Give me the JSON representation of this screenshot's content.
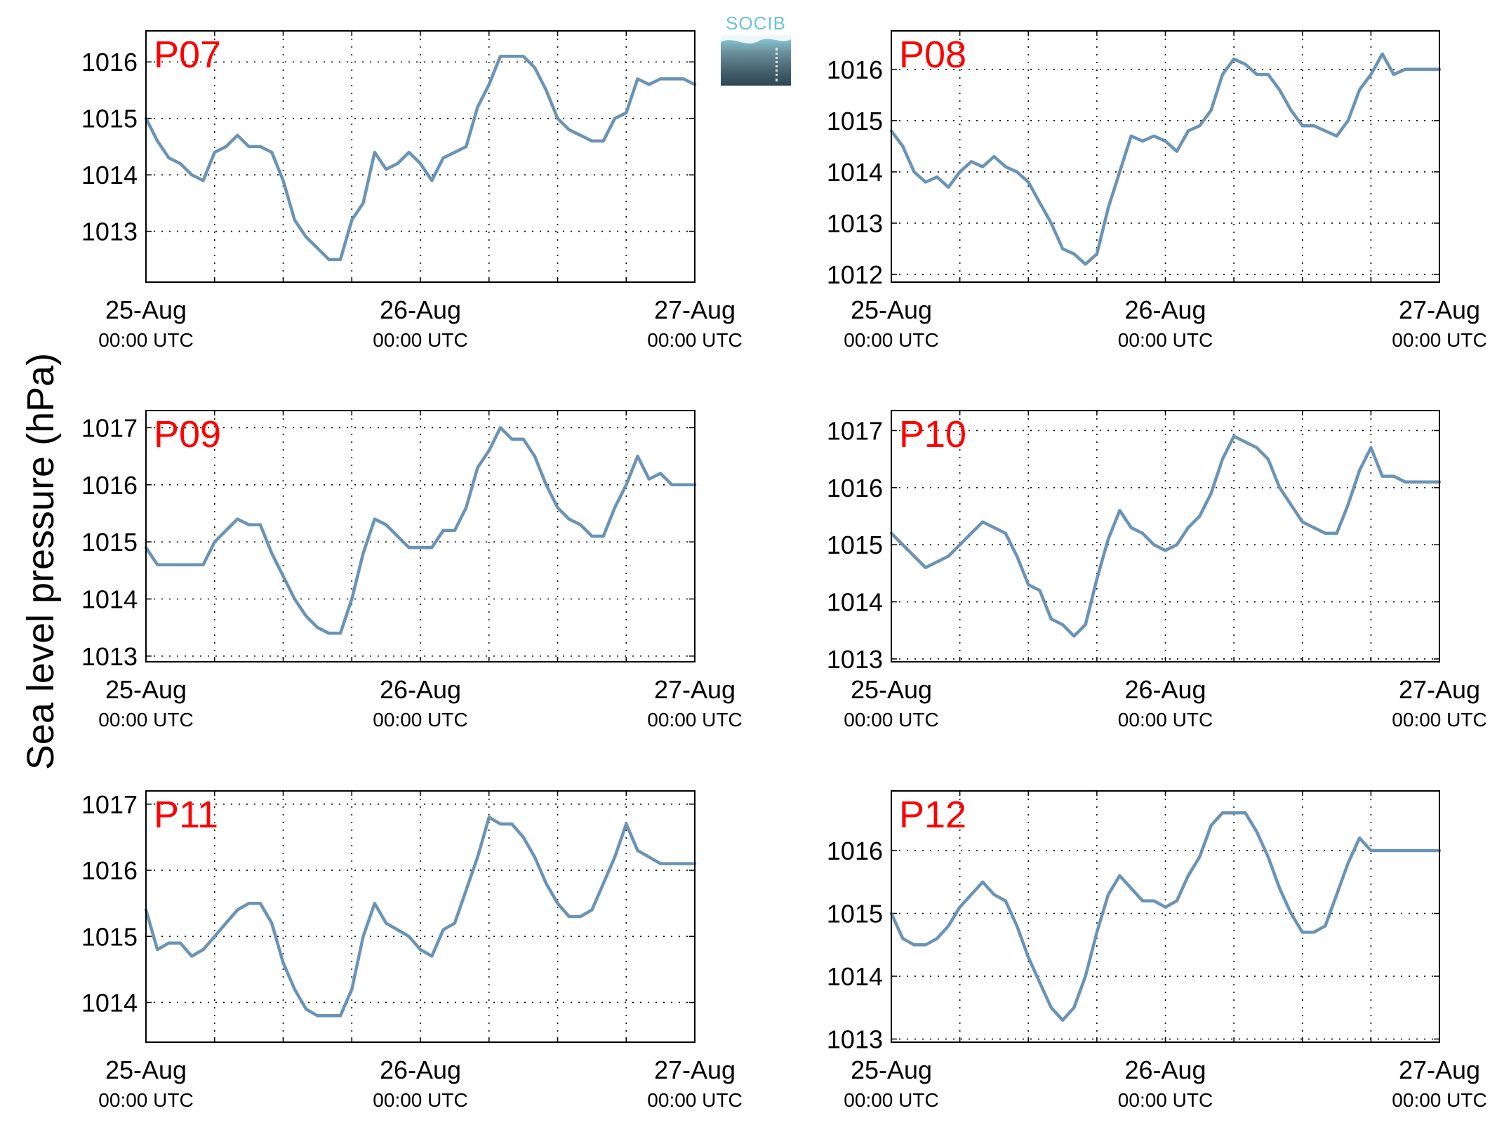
{
  "figure": {
    "ylabel": "Sea level pressure (hPa)",
    "logo_text": "SOCIB"
  },
  "colors": {
    "line": "#6a93b6",
    "panel_label": "#ff0000",
    "grid": "#000000"
  },
  "chart_data": [
    {
      "type": "line",
      "title": "P07",
      "x_ticks": [
        {
          "main": "25-Aug",
          "sub": "00:00 UTC"
        },
        {
          "main": "26-Aug",
          "sub": "00:00 UTC"
        },
        {
          "main": "27-Aug",
          "sub": "00:00 UTC"
        }
      ],
      "xlim": [
        0,
        48
      ],
      "ylim": [
        1012.1,
        1016.55
      ],
      "yticks": [
        1013,
        1014,
        1015,
        1016
      ],
      "grid": true,
      "series": [
        {
          "x": [
            0,
            1,
            2,
            3,
            4,
            5,
            6,
            7,
            8,
            9,
            10,
            11,
            12,
            13,
            14,
            15,
            16,
            17,
            18,
            19,
            20,
            21,
            22,
            23,
            24,
            25,
            26,
            27,
            28,
            29,
            30,
            31,
            32,
            33,
            34,
            35,
            36,
            37,
            38,
            39,
            40,
            41,
            42,
            43,
            44,
            45,
            46,
            47,
            48
          ],
          "y": [
            1015.0,
            1014.6,
            1014.3,
            1014.2,
            1014.0,
            1013.9,
            1014.4,
            1014.5,
            1014.7,
            1014.5,
            1014.5,
            1014.4,
            1013.9,
            1013.2,
            1012.9,
            1012.7,
            1012.5,
            1012.5,
            1013.2,
            1013.5,
            1014.4,
            1014.1,
            1014.2,
            1014.4,
            1014.2,
            1013.9,
            1014.3,
            1014.4,
            1014.5,
            1015.2,
            1015.6,
            1016.1,
            1016.1,
            1016.1,
            1015.9,
            1015.5,
            1015.0,
            1014.8,
            1014.7,
            1014.6,
            1014.6,
            1015.0,
            1015.1,
            1015.7,
            1015.6,
            1015.7,
            1015.7,
            1015.7,
            1015.6
          ]
        }
      ]
    },
    {
      "type": "line",
      "title": "P08",
      "x_ticks": [
        {
          "main": "25-Aug",
          "sub": "00:00 UTC"
        },
        {
          "main": "26-Aug",
          "sub": "00:00 UTC"
        },
        {
          "main": "27-Aug",
          "sub": "00:00 UTC"
        }
      ],
      "xlim": [
        0,
        48
      ],
      "ylim": [
        1011.85,
        1016.75
      ],
      "yticks": [
        1012,
        1013,
        1014,
        1015,
        1016
      ],
      "grid": true,
      "series": [
        {
          "x": [
            0,
            1,
            2,
            3,
            4,
            5,
            6,
            7,
            8,
            9,
            10,
            11,
            12,
            13,
            14,
            15,
            16,
            17,
            18,
            19,
            20,
            21,
            22,
            23,
            24,
            25,
            26,
            27,
            28,
            29,
            30,
            31,
            32,
            33,
            34,
            35,
            36,
            37,
            38,
            39,
            40,
            41,
            42,
            43,
            44,
            45,
            46,
            47,
            48
          ],
          "y": [
            1014.8,
            1014.5,
            1014.0,
            1013.8,
            1013.9,
            1013.7,
            1014.0,
            1014.2,
            1014.1,
            1014.3,
            1014.1,
            1014.0,
            1013.8,
            1013.4,
            1013.0,
            1012.5,
            1012.4,
            1012.2,
            1012.4,
            1013.3,
            1014.0,
            1014.7,
            1014.6,
            1014.7,
            1014.6,
            1014.4,
            1014.8,
            1014.9,
            1015.2,
            1015.9,
            1016.2,
            1016.1,
            1015.9,
            1015.9,
            1015.6,
            1015.2,
            1014.9,
            1014.9,
            1014.8,
            1014.7,
            1015.0,
            1015.6,
            1015.9,
            1016.3,
            1015.9,
            1016.0,
            1016.0,
            1016.0,
            1016.0
          ]
        }
      ]
    },
    {
      "type": "line",
      "title": "P09",
      "x_ticks": [
        {
          "main": "25-Aug",
          "sub": "00:00 UTC"
        },
        {
          "main": "26-Aug",
          "sub": "00:00 UTC"
        },
        {
          "main": "27-Aug",
          "sub": "00:00 UTC"
        }
      ],
      "xlim": [
        0,
        48
      ],
      "ylim": [
        1012.9,
        1017.3
      ],
      "yticks": [
        1013,
        1014,
        1015,
        1016,
        1017
      ],
      "grid": true,
      "series": [
        {
          "x": [
            0,
            1,
            2,
            3,
            4,
            5,
            6,
            7,
            8,
            9,
            10,
            11,
            12,
            13,
            14,
            15,
            16,
            17,
            18,
            19,
            20,
            21,
            22,
            23,
            24,
            25,
            26,
            27,
            28,
            29,
            30,
            31,
            32,
            33,
            34,
            35,
            36,
            37,
            38,
            39,
            40,
            41,
            42,
            43,
            44,
            45,
            46,
            47,
            48
          ],
          "y": [
            1014.9,
            1014.6,
            1014.6,
            1014.6,
            1014.6,
            1014.6,
            1015.0,
            1015.2,
            1015.4,
            1015.3,
            1015.3,
            1014.8,
            1014.4,
            1014.0,
            1013.7,
            1013.5,
            1013.4,
            1013.4,
            1014.0,
            1014.8,
            1015.4,
            1015.3,
            1015.1,
            1014.9,
            1014.9,
            1014.9,
            1015.2,
            1015.2,
            1015.6,
            1016.3,
            1016.6,
            1017.0,
            1016.8,
            1016.8,
            1016.5,
            1016.0,
            1015.6,
            1015.4,
            1015.3,
            1015.1,
            1015.1,
            1015.6,
            1016.0,
            1016.5,
            1016.1,
            1016.2,
            1016.0,
            1016.0,
            1016.0
          ]
        }
      ]
    },
    {
      "type": "line",
      "title": "P10",
      "x_ticks": [
        {
          "main": "25-Aug",
          "sub": "00:00 UTC"
        },
        {
          "main": "26-Aug",
          "sub": "00:00 UTC"
        },
        {
          "main": "27-Aug",
          "sub": "00:00 UTC"
        }
      ],
      "xlim": [
        0,
        48
      ],
      "ylim": [
        1012.95,
        1017.35
      ],
      "yticks": [
        1013,
        1014,
        1015,
        1016,
        1017
      ],
      "grid": true,
      "series": [
        {
          "x": [
            0,
            1,
            2,
            3,
            4,
            5,
            6,
            7,
            8,
            9,
            10,
            11,
            12,
            13,
            14,
            15,
            16,
            17,
            18,
            19,
            20,
            21,
            22,
            23,
            24,
            25,
            26,
            27,
            28,
            29,
            30,
            31,
            32,
            33,
            34,
            35,
            36,
            37,
            38,
            39,
            40,
            41,
            42,
            43,
            44,
            45,
            46,
            47,
            48
          ],
          "y": [
            1015.2,
            1015.0,
            1014.8,
            1014.6,
            1014.7,
            1014.8,
            1015.0,
            1015.2,
            1015.4,
            1015.3,
            1015.2,
            1014.8,
            1014.3,
            1014.2,
            1013.7,
            1013.6,
            1013.4,
            1013.6,
            1014.4,
            1015.1,
            1015.6,
            1015.3,
            1015.2,
            1015.0,
            1014.9,
            1015.0,
            1015.3,
            1015.5,
            1015.9,
            1016.5,
            1016.9,
            1016.8,
            1016.7,
            1016.5,
            1016.0,
            1015.7,
            1015.4,
            1015.3,
            1015.2,
            1015.2,
            1015.7,
            1016.3,
            1016.7,
            1016.2,
            1016.2,
            1016.1,
            1016.1,
            1016.1,
            1016.1
          ]
        }
      ]
    },
    {
      "type": "line",
      "title": "P11",
      "x_ticks": [
        {
          "main": "25-Aug",
          "sub": "00:00 UTC"
        },
        {
          "main": "26-Aug",
          "sub": "00:00 UTC"
        },
        {
          "main": "27-Aug",
          "sub": "00:00 UTC"
        }
      ],
      "xlim": [
        0,
        48
      ],
      "ylim": [
        1013.4,
        1017.2
      ],
      "yticks": [
        1014,
        1015,
        1016,
        1017
      ],
      "grid": true,
      "series": [
        {
          "x": [
            0,
            1,
            2,
            3,
            4,
            5,
            6,
            7,
            8,
            9,
            10,
            11,
            12,
            13,
            14,
            15,
            16,
            17,
            18,
            19,
            20,
            21,
            22,
            23,
            24,
            25,
            26,
            27,
            28,
            29,
            30,
            31,
            32,
            33,
            34,
            35,
            36,
            37,
            38,
            39,
            40,
            41,
            42,
            43,
            44,
            45,
            46,
            47,
            48
          ],
          "y": [
            1015.4,
            1014.8,
            1014.9,
            1014.9,
            1014.7,
            1014.8,
            1015.0,
            1015.2,
            1015.4,
            1015.5,
            1015.5,
            1015.2,
            1014.6,
            1014.2,
            1013.9,
            1013.8,
            1013.8,
            1013.8,
            1014.2,
            1015.0,
            1015.5,
            1015.2,
            1015.1,
            1015.0,
            1014.8,
            1014.7,
            1015.1,
            1015.2,
            1015.7,
            1016.2,
            1016.8,
            1016.7,
            1016.7,
            1016.5,
            1016.2,
            1015.8,
            1015.5,
            1015.3,
            1015.3,
            1015.4,
            1015.8,
            1016.2,
            1016.7,
            1016.3,
            1016.2,
            1016.1,
            1016.1,
            1016.1,
            1016.1
          ]
        }
      ]
    },
    {
      "type": "line",
      "title": "P12",
      "x_ticks": [
        {
          "main": "25-Aug",
          "sub": "00:00 UTC"
        },
        {
          "main": "26-Aug",
          "sub": "00:00 UTC"
        },
        {
          "main": "27-Aug",
          "sub": "00:00 UTC"
        }
      ],
      "xlim": [
        0,
        48
      ],
      "ylim": [
        1012.95,
        1016.95
      ],
      "yticks": [
        1013,
        1014,
        1015,
        1016
      ],
      "grid": true,
      "series": [
        {
          "x": [
            0,
            1,
            2,
            3,
            4,
            5,
            6,
            7,
            8,
            9,
            10,
            11,
            12,
            13,
            14,
            15,
            16,
            17,
            18,
            19,
            20,
            21,
            22,
            23,
            24,
            25,
            26,
            27,
            28,
            29,
            30,
            31,
            32,
            33,
            34,
            35,
            36,
            37,
            38,
            39,
            40,
            41,
            42,
            43,
            44,
            45,
            46,
            47,
            48
          ],
          "y": [
            1015.0,
            1014.6,
            1014.5,
            1014.5,
            1014.6,
            1014.8,
            1015.1,
            1015.3,
            1015.5,
            1015.3,
            1015.2,
            1014.8,
            1014.3,
            1013.9,
            1013.5,
            1013.3,
            1013.5,
            1014.0,
            1014.7,
            1015.3,
            1015.6,
            1015.4,
            1015.2,
            1015.2,
            1015.1,
            1015.2,
            1015.6,
            1015.9,
            1016.4,
            1016.6,
            1016.6,
            1016.6,
            1016.3,
            1015.9,
            1015.4,
            1015.0,
            1014.7,
            1014.7,
            1014.8,
            1015.3,
            1015.8,
            1016.2,
            1016.0,
            1016.0,
            1016.0,
            1016.0,
            1016.0,
            1016.0,
            1016.0
          ]
        }
      ]
    }
  ]
}
